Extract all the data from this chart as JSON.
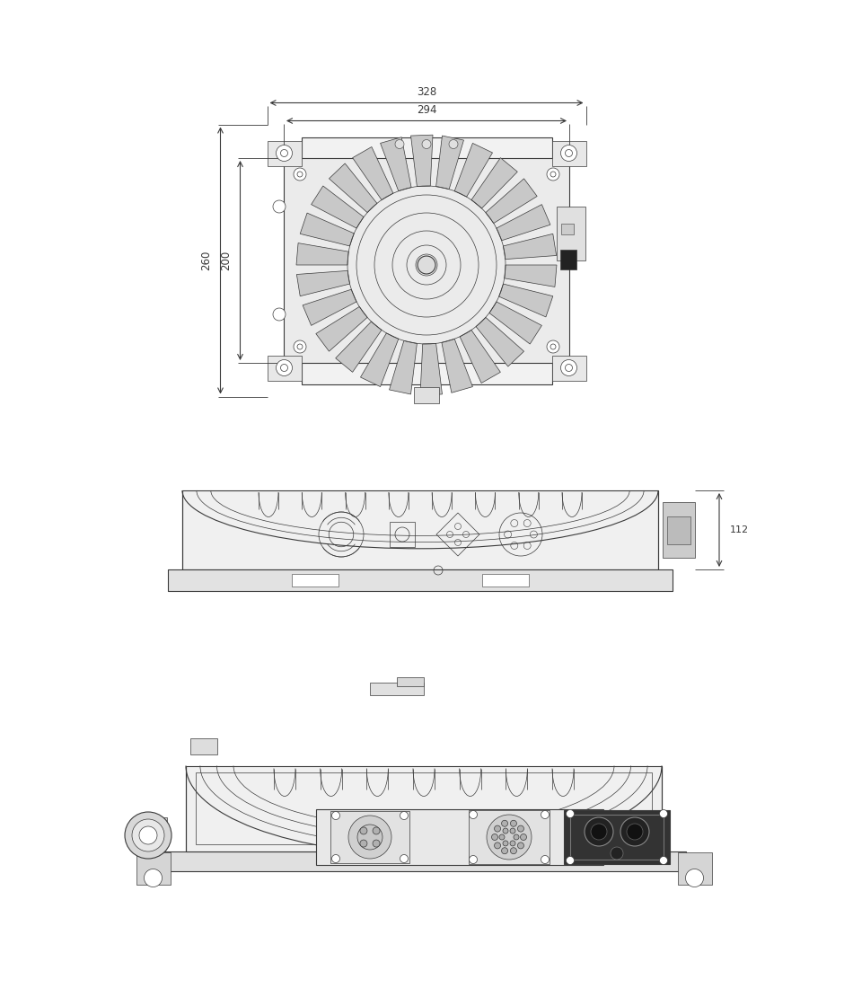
{
  "bg_color": "#ffffff",
  "line_color": "#3a3a3a",
  "dim_color": "#3a3a3a",
  "thin_lw": 0.5,
  "mid_lw": 0.8,
  "thick_lw": 1.2
}
